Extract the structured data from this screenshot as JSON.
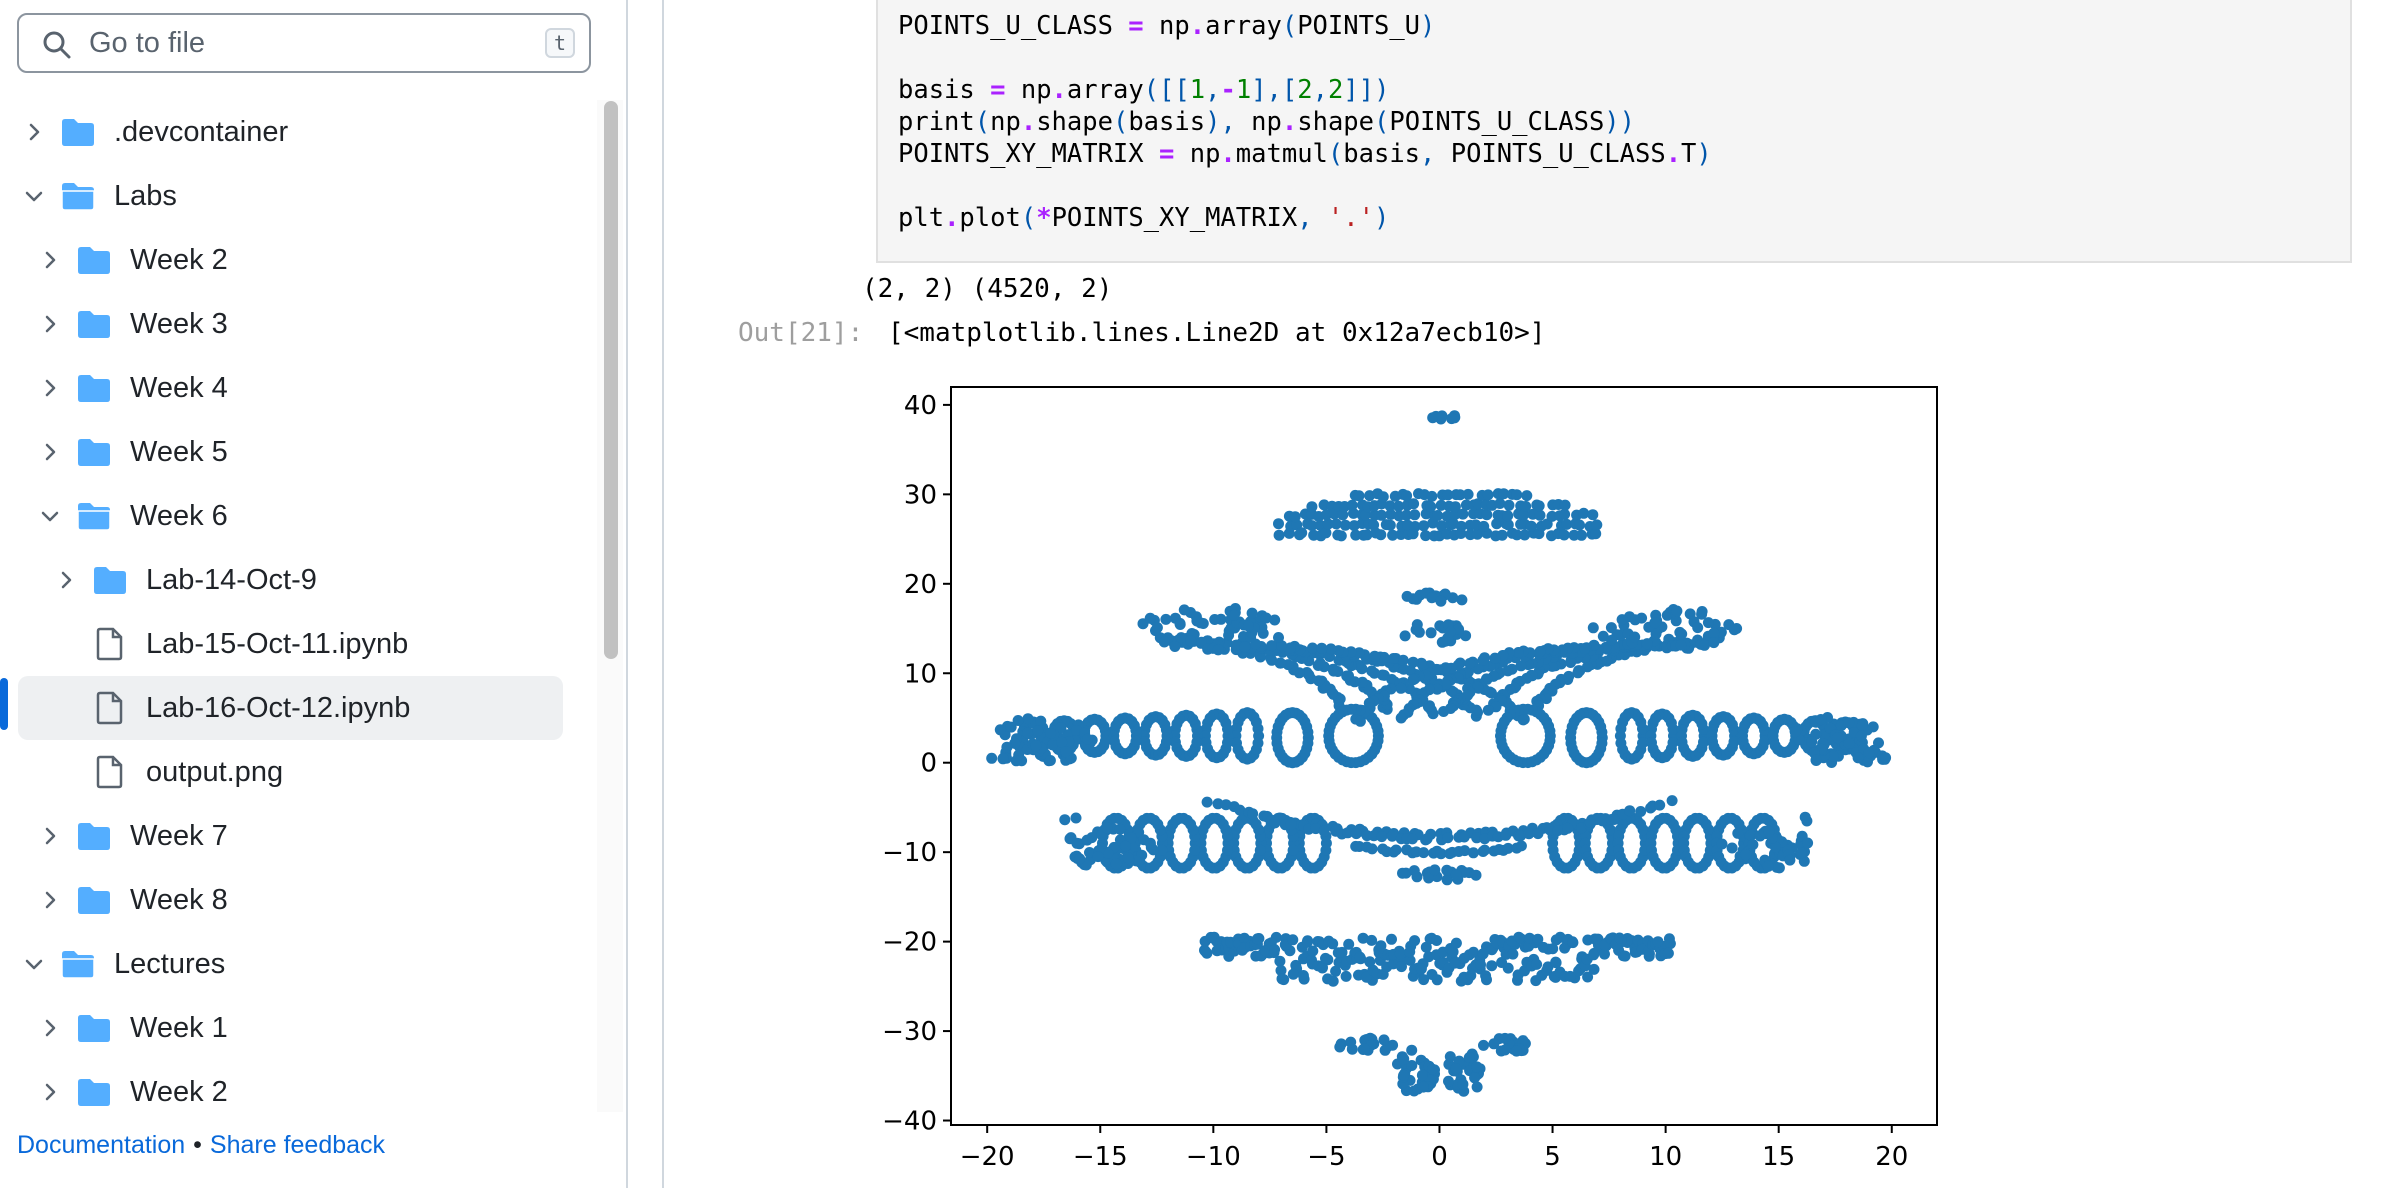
{
  "search": {
    "placeholder": "Go to file",
    "shortcut": "t"
  },
  "tree": [
    {
      "label": ".devcontainer",
      "type": "folder",
      "expanded": false,
      "depth": 0
    },
    {
      "label": "Labs",
      "type": "folder",
      "expanded": true,
      "depth": 0
    },
    {
      "label": "Week 2",
      "type": "folder",
      "expanded": false,
      "depth": 1
    },
    {
      "label": "Week 3",
      "type": "folder",
      "expanded": false,
      "depth": 1
    },
    {
      "label": "Week 4",
      "type": "folder",
      "expanded": false,
      "depth": 1
    },
    {
      "label": "Week 5",
      "type": "folder",
      "expanded": false,
      "depth": 1
    },
    {
      "label": "Week 6",
      "type": "folder",
      "expanded": true,
      "depth": 1
    },
    {
      "label": "Lab-14-Oct-9",
      "type": "folder",
      "expanded": false,
      "depth": 2
    },
    {
      "label": "Lab-15-Oct-11.ipynb",
      "type": "file",
      "depth": 2
    },
    {
      "label": "Lab-16-Oct-12.ipynb",
      "type": "file",
      "depth": 2,
      "selected": true
    },
    {
      "label": "output.png",
      "type": "file",
      "depth": 2
    },
    {
      "label": "Week 7",
      "type": "folder",
      "expanded": false,
      "depth": 1
    },
    {
      "label": "Week 8",
      "type": "folder",
      "expanded": false,
      "depth": 1
    },
    {
      "label": "Lectures",
      "type": "folder",
      "expanded": true,
      "depth": 0
    },
    {
      "label": "Week 1",
      "type": "folder",
      "expanded": false,
      "depth": 1
    },
    {
      "label": "Week 2",
      "type": "folder",
      "expanded": false,
      "depth": 1
    }
  ],
  "footer": {
    "documentation": "Documentation",
    "separator": "•",
    "feedback": "Share feedback"
  },
  "notebook": {
    "code_lines": [
      "POINTS_U_CLASS = np.array(POINTS_U)",
      "",
      "basis = np.array([[1,-1],[2,2]])",
      "print(np.shape(basis), np.shape(POINTS_U_CLASS))",
      "POINTS_XY_MATRIX = np.matmul(basis, POINTS_U_CLASS.T)",
      "",
      "plt.plot(*POINTS_XY_MATRIX, '.')"
    ],
    "stdout": "(2, 2) (4520, 2)",
    "out_prompt": "Out[21]:",
    "out_text": "[<matplotlib.lines.Line2D at 0x12a7ecb10>]"
  },
  "colors": {
    "point": "#1f77b4",
    "accent": "#0969da",
    "folder": "#54aeff"
  },
  "chart_data": {
    "type": "scatter",
    "title": "",
    "xlabel": "",
    "ylabel": "",
    "xlim": [
      -21.6,
      22
    ],
    "ylim": [
      -40.5,
      42
    ],
    "xticks": [
      -20,
      -15,
      -10,
      -5,
      0,
      5,
      10,
      15,
      20
    ],
    "yticks": [
      40,
      30,
      20,
      10,
      0,
      -10,
      -20,
      -30,
      -40
    ],
    "grid": false,
    "n_points": 4520,
    "series": [
      {
        "color": "#1f77b4",
        "clusters": [
          {
            "x": [
              -0.8,
              1.2
            ],
            "y": [
              38,
              39
            ]
          },
          {
            "x": [
              -7,
              7
            ],
            "y": [
              25,
              31
            ]
          },
          {
            "x": [
              -13.5,
              13.5
            ],
            "y": [
              12.5,
              19
            ]
          },
          {
            "x": [
              -20,
              -2.5
            ],
            "y": [
              -1,
              6
            ]
          },
          {
            "x": [
              2.5,
              20
            ],
            "y": [
              -1,
              6
            ]
          },
          {
            "x": [
              -16.5,
              16.5
            ],
            "y": [
              -13,
              -6
            ]
          },
          {
            "x": [
              -10.5,
              10.5
            ],
            "y": [
              -25,
              -18.5
            ]
          },
          {
            "x": [
              -4,
              4
            ],
            "y": [
              -37,
              -31
            ]
          }
        ]
      }
    ]
  }
}
